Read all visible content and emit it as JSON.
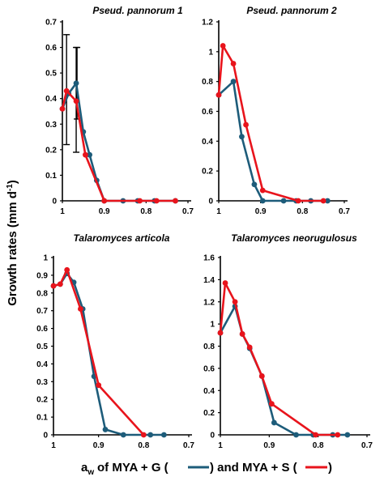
{
  "colors": {
    "mya_g": "#1d5c7a",
    "mya_s": "#e8141c",
    "axis": "#000000"
  },
  "ylabel": {
    "main": "Growth rates (mm d",
    "sup": "-1",
    "end": ")"
  },
  "xlabel": {
    "a": "a",
    "w_sub": "w",
    "part1": " of MYA + G (",
    "part2": ") and MYA + S (",
    "part3": ")"
  },
  "chart_data": [
    {
      "type": "line",
      "title": "Pseud. pannorum 1",
      "xlim": [
        1.0,
        0.7
      ],
      "ylim": [
        0,
        0.7
      ],
      "xticks": [
        "1",
        "0.9",
        "0.8",
        "0.7"
      ],
      "xtick_values": [
        1.0,
        0.9,
        0.8,
        0.7
      ],
      "yticks": [
        "0",
        "0.1",
        "0.2",
        "0.3",
        "0.4",
        "0.5",
        "0.6",
        "0.7"
      ],
      "ytick_values": [
        0,
        0.1,
        0.2,
        0.3,
        0.4,
        0.5,
        0.6,
        0.7
      ],
      "series": [
        {
          "color_key": "mya_g",
          "x": [
            1.0,
            0.985,
            0.967,
            0.95,
            0.935,
            0.918,
            0.9,
            0.855,
            0.82,
            0.78,
            0.73
          ],
          "y": [
            0.36,
            0.42,
            0.46,
            0.27,
            0.18,
            0.08,
            0.0,
            0.0,
            0.0,
            0.0,
            0.0
          ]
        },
        {
          "color_key": "mya_s",
          "x": [
            1.0,
            0.99,
            0.967,
            0.945,
            0.9,
            0.815,
            0.775,
            0.73
          ],
          "y": [
            0.36,
            0.43,
            0.39,
            0.18,
            0.0,
            0.0,
            0.0,
            0.0
          ]
        }
      ],
      "error_bars": [
        {
          "x": 0.99,
          "low": 0.22,
          "high": 0.65
        },
        {
          "x": 0.967,
          "low": 0.19,
          "high": 0.6
        },
        {
          "x": 0.965,
          "low": 0.32,
          "high": 0.6
        }
      ]
    },
    {
      "type": "line",
      "title": "Pseud. pannorum 2",
      "xlim": [
        1.0,
        0.7
      ],
      "ylim": [
        0,
        1.2
      ],
      "xticks": [
        "1",
        "0.9",
        "0.8",
        "0.7"
      ],
      "xtick_values": [
        1.0,
        0.9,
        0.8,
        0.7
      ],
      "yticks": [
        "0",
        "0.2",
        "0.4",
        "0.6",
        "0.8",
        "1",
        "1.2"
      ],
      "ytick_values": [
        0,
        0.2,
        0.4,
        0.6,
        0.8,
        1.0,
        1.2
      ],
      "series": [
        {
          "color_key": "mya_g",
          "x": [
            1.0,
            0.965,
            0.945,
            0.915,
            0.895,
            0.845,
            0.815,
            0.78,
            0.74
          ],
          "y": [
            0.71,
            0.8,
            0.43,
            0.11,
            0.0,
            0.0,
            0.0,
            0.0,
            0.0
          ]
        },
        {
          "color_key": "mya_s",
          "x": [
            1.0,
            0.99,
            0.965,
            0.935,
            0.895,
            0.81,
            0.75
          ],
          "y": [
            0.71,
            1.04,
            0.92,
            0.51,
            0.07,
            0.0,
            0.0
          ]
        }
      ]
    },
    {
      "type": "line",
      "title": "Talaromyces articola",
      "xlim": [
        1.0,
        0.7
      ],
      "ylim": [
        0,
        1.0
      ],
      "xticks": [
        "1",
        "0.9",
        "0.8",
        "0.7"
      ],
      "xtick_values": [
        1.0,
        0.9,
        0.8,
        0.7
      ],
      "yticks": [
        "0",
        "0.1",
        "0.2",
        "0.3",
        "0.4",
        "0.5",
        "0.6",
        "0.7",
        "0.8",
        "0.9",
        "1"
      ],
      "ytick_values": [
        0,
        0.1,
        0.2,
        0.3,
        0.4,
        0.5,
        0.6,
        0.7,
        0.8,
        0.9,
        1.0
      ],
      "series": [
        {
          "color_key": "mya_g",
          "x": [
            1.0,
            0.985,
            0.97,
            0.955,
            0.935,
            0.91,
            0.885,
            0.845,
            0.785,
            0.755
          ],
          "y": [
            0.84,
            0.85,
            0.91,
            0.86,
            0.71,
            0.33,
            0.03,
            0.0,
            0.0,
            0.0
          ]
        },
        {
          "color_key": "mya_s",
          "x": [
            1.0,
            0.985,
            0.97,
            0.94,
            0.9,
            0.8
          ],
          "y": [
            0.84,
            0.85,
            0.93,
            0.71,
            0.28,
            0.0
          ]
        }
      ]
    },
    {
      "type": "line",
      "title": "Talaromyces neorugulosus",
      "xlim": [
        1.0,
        0.7
      ],
      "ylim": [
        0,
        1.6
      ],
      "xticks": [
        "1",
        "0.9",
        "0.8",
        "0.7"
      ],
      "xtick_values": [
        1.0,
        0.9,
        0.8,
        0.7
      ],
      "yticks": [
        "0",
        "0.2",
        "0.4",
        "0.6",
        "0.8",
        "1",
        "1.2",
        "1.4",
        "1.6"
      ],
      "ytick_values": [
        0,
        0.2,
        0.4,
        0.6,
        0.8,
        1.0,
        1.2,
        1.4,
        1.6
      ],
      "series": [
        {
          "color_key": "mya_g",
          "x": [
            1.0,
            0.97,
            0.955,
            0.94,
            0.915,
            0.89,
            0.845,
            0.81,
            0.77,
            0.74
          ],
          "y": [
            0.92,
            1.16,
            0.91,
            0.78,
            0.53,
            0.11,
            0.0,
            0.0,
            0.0,
            0.0
          ]
        },
        {
          "color_key": "mya_s",
          "x": [
            1.0,
            0.99,
            0.97,
            0.955,
            0.94,
            0.915,
            0.895,
            0.805,
            0.76
          ],
          "y": [
            0.92,
            1.37,
            1.2,
            0.91,
            0.79,
            0.53,
            0.28,
            0.0,
            0.0
          ]
        }
      ]
    }
  ]
}
